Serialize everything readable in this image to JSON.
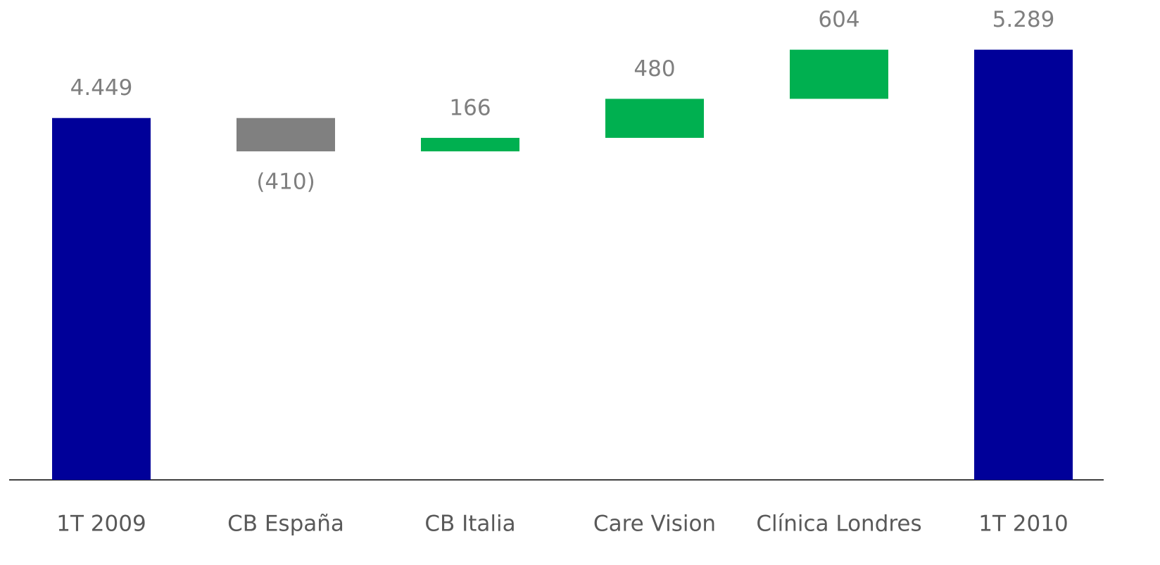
{
  "chart_data": {
    "type": "waterfall",
    "categories": [
      "1T 2009",
      "CB España",
      "CB Italia",
      "Care Vision",
      "Clínica Londres",
      "1T 2010"
    ],
    "values": [
      4449,
      -410,
      166,
      480,
      604,
      5289
    ],
    "value_labels": [
      "4.449",
      "(410)",
      "166",
      "480",
      "604",
      "5.289"
    ],
    "measure": [
      "absolute",
      "relative",
      "relative",
      "relative",
      "relative",
      "absolute"
    ],
    "colors": [
      "#000099",
      "#808080",
      "#00b050",
      "#00b050",
      "#00b050",
      "#000099"
    ],
    "ylim": [
      0,
      5900
    ]
  }
}
